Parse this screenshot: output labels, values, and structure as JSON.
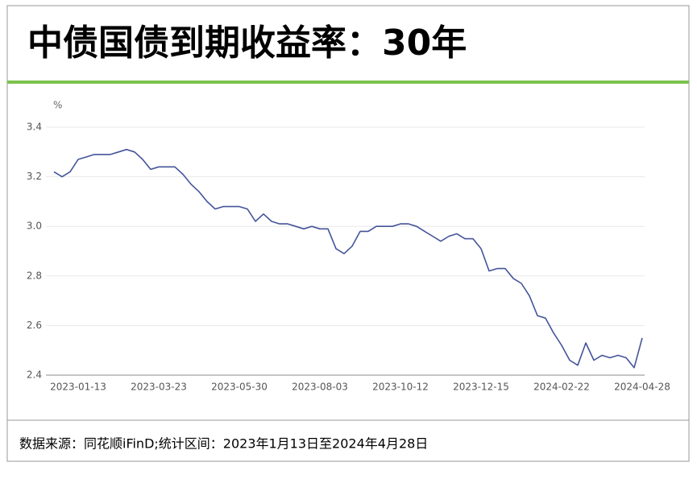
{
  "title": "中债国债到期收益率：30年",
  "source": "数据来源：同花顺iFinD;统计区间：2023年1月13日至2024年4月28日",
  "chart_data": {
    "type": "line",
    "y_unit": "%",
    "categories": [
      null,
      null,
      null,
      "2023-01-13",
      null,
      null,
      null,
      null,
      null,
      null,
      null,
      null,
      null,
      "2023-03-23",
      null,
      null,
      null,
      null,
      null,
      null,
      null,
      null,
      null,
      "2023-05-30",
      null,
      null,
      null,
      null,
      null,
      null,
      null,
      null,
      null,
      "2023-08-03",
      null,
      null,
      null,
      null,
      null,
      null,
      null,
      null,
      null,
      "2023-10-12",
      null,
      null,
      null,
      null,
      null,
      null,
      null,
      null,
      null,
      "2023-12-15",
      null,
      null,
      null,
      null,
      null,
      null,
      null,
      null,
      null,
      "2024-02-22",
      null,
      null,
      null,
      null,
      null,
      null,
      null,
      null,
      null,
      "2024-04-28"
    ],
    "values": [
      3.22,
      3.2,
      3.22,
      3.27,
      3.28,
      3.29,
      3.29,
      3.29,
      3.3,
      3.31,
      3.3,
      3.27,
      3.23,
      3.24,
      3.24,
      3.24,
      3.21,
      3.17,
      3.14,
      3.1,
      3.07,
      3.08,
      3.08,
      3.08,
      3.07,
      3.02,
      3.05,
      3.02,
      3.01,
      3.01,
      3.0,
      2.99,
      3.0,
      2.99,
      2.99,
      2.91,
      2.89,
      2.92,
      2.98,
      2.98,
      3.0,
      3.0,
      3.0,
      3.01,
      3.01,
      3.0,
      2.98,
      2.96,
      2.94,
      2.96,
      2.97,
      2.95,
      2.95,
      2.91,
      2.82,
      2.83,
      2.83,
      2.79,
      2.77,
      2.72,
      2.64,
      2.63,
      2.57,
      2.52,
      2.46,
      2.44,
      2.53,
      2.46,
      2.48,
      2.47,
      2.48,
      2.47,
      2.43,
      2.55
    ],
    "color": "#44549a",
    "ylim": [
      2.4,
      3.4
    ],
    "yticks": [
      2.4,
      2.6,
      2.8,
      {
        "value": 3,
        "label": "3.0"
      },
      3.2,
      3.4
    ],
    "grid": true
  }
}
